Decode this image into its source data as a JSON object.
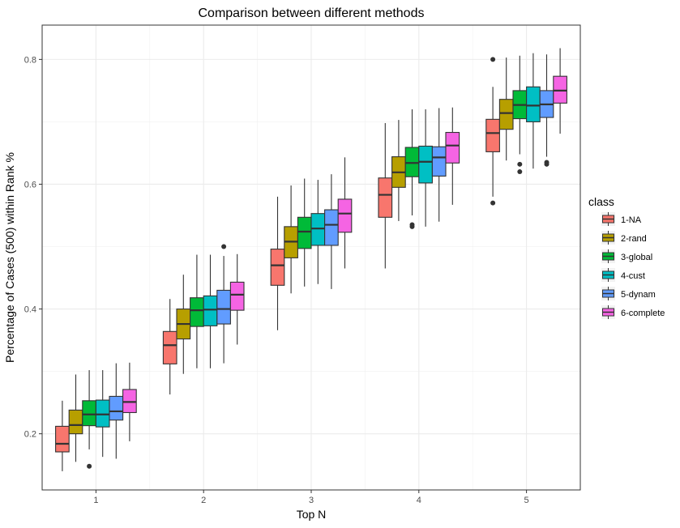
{
  "chart_data": {
    "type": "boxplot",
    "title": "Comparison between different methods",
    "xlabel": "Top N",
    "ylabel": "Percentage of Cases (500) within Rank %",
    "categories": [
      "1",
      "2",
      "3",
      "4",
      "5"
    ],
    "ylim": [
      0.11,
      0.855
    ],
    "y_ticks": [
      "0.2",
      "0.4",
      "0.6",
      "0.8"
    ],
    "grid": true,
    "legend": {
      "title": "class",
      "position": "right"
    },
    "series": [
      {
        "name": "1-NA",
        "color": "#F8766D",
        "boxes": [
          {
            "min": 0.14,
            "q1": 0.171,
            "median": 0.184,
            "q3": 0.212,
            "max": 0.253,
            "outliers": []
          },
          {
            "min": 0.263,
            "q1": 0.312,
            "median": 0.342,
            "q3": 0.364,
            "max": 0.416,
            "outliers": []
          },
          {
            "min": 0.366,
            "q1": 0.438,
            "median": 0.47,
            "q3": 0.496,
            "max": 0.58,
            "outliers": []
          },
          {
            "min": 0.465,
            "q1": 0.547,
            "median": 0.583,
            "q3": 0.61,
            "max": 0.698,
            "outliers": []
          },
          {
            "min": 0.58,
            "q1": 0.652,
            "median": 0.682,
            "q3": 0.704,
            "max": 0.756,
            "outliers": [
              0.57,
              0.8
            ]
          }
        ]
      },
      {
        "name": "2-rand",
        "color": "#B79F00",
        "boxes": [
          {
            "min": 0.155,
            "q1": 0.2,
            "median": 0.214,
            "q3": 0.238,
            "max": 0.295,
            "outliers": []
          },
          {
            "min": 0.296,
            "q1": 0.352,
            "median": 0.376,
            "q3": 0.4,
            "max": 0.455,
            "outliers": []
          },
          {
            "min": 0.425,
            "q1": 0.482,
            "median": 0.508,
            "q3": 0.532,
            "max": 0.598,
            "outliers": []
          },
          {
            "min": 0.541,
            "q1": 0.595,
            "median": 0.619,
            "q3": 0.644,
            "max": 0.703,
            "outliers": []
          },
          {
            "min": 0.638,
            "q1": 0.688,
            "median": 0.714,
            "q3": 0.736,
            "max": 0.803,
            "outliers": []
          }
        ]
      },
      {
        "name": "3-global",
        "color": "#00BA38",
        "boxes": [
          {
            "min": 0.175,
            "q1": 0.213,
            "median": 0.231,
            "q3": 0.253,
            "max": 0.302,
            "outliers": [
              0.148
            ]
          },
          {
            "min": 0.305,
            "q1": 0.372,
            "median": 0.398,
            "q3": 0.418,
            "max": 0.487,
            "outliers": []
          },
          {
            "min": 0.436,
            "q1": 0.497,
            "median": 0.524,
            "q3": 0.547,
            "max": 0.609,
            "outliers": []
          },
          {
            "min": 0.55,
            "q1": 0.612,
            "median": 0.634,
            "q3": 0.659,
            "max": 0.72,
            "outliers": [
              0.532,
              0.535
            ]
          },
          {
            "min": 0.648,
            "q1": 0.705,
            "median": 0.727,
            "q3": 0.75,
            "max": 0.806,
            "outliers": [
              0.62,
              0.632
            ]
          }
        ]
      },
      {
        "name": "4-cust",
        "color": "#00BFC4",
        "boxes": [
          {
            "min": 0.163,
            "q1": 0.211,
            "median": 0.231,
            "q3": 0.254,
            "max": 0.302,
            "outliers": []
          },
          {
            "min": 0.305,
            "q1": 0.373,
            "median": 0.399,
            "q3": 0.421,
            "max": 0.487,
            "outliers": []
          },
          {
            "min": 0.44,
            "q1": 0.502,
            "median": 0.529,
            "q3": 0.553,
            "max": 0.607,
            "outliers": []
          },
          {
            "min": 0.532,
            "q1": 0.602,
            "median": 0.636,
            "q3": 0.661,
            "max": 0.72,
            "outliers": []
          },
          {
            "min": 0.625,
            "q1": 0.7,
            "median": 0.726,
            "q3": 0.756,
            "max": 0.81,
            "outliers": []
          }
        ]
      },
      {
        "name": "5-dynam",
        "color": "#619CFF",
        "boxes": [
          {
            "min": 0.16,
            "q1": 0.222,
            "median": 0.236,
            "q3": 0.26,
            "max": 0.313,
            "outliers": []
          },
          {
            "min": 0.313,
            "q1": 0.376,
            "median": 0.4,
            "q3": 0.43,
            "max": 0.485,
            "outliers": [
              0.5
            ]
          },
          {
            "min": 0.432,
            "q1": 0.502,
            "median": 0.535,
            "q3": 0.559,
            "max": 0.616,
            "outliers": []
          },
          {
            "min": 0.54,
            "q1": 0.613,
            "median": 0.643,
            "q3": 0.66,
            "max": 0.722,
            "outliers": []
          },
          {
            "min": 0.644,
            "q1": 0.707,
            "median": 0.728,
            "q3": 0.75,
            "max": 0.808,
            "outliers": [
              0.632,
              0.635
            ]
          }
        ]
      },
      {
        "name": "6-complete",
        "color": "#F564E3",
        "boxes": [
          {
            "min": 0.188,
            "q1": 0.234,
            "median": 0.251,
            "q3": 0.271,
            "max": 0.314,
            "outliers": []
          },
          {
            "min": 0.343,
            "q1": 0.398,
            "median": 0.423,
            "q3": 0.443,
            "max": 0.488,
            "outliers": []
          },
          {
            "min": 0.465,
            "q1": 0.523,
            "median": 0.553,
            "q3": 0.576,
            "max": 0.643,
            "outliers": []
          },
          {
            "min": 0.567,
            "q1": 0.634,
            "median": 0.662,
            "q3": 0.683,
            "max": 0.723,
            "outliers": []
          },
          {
            "min": 0.681,
            "q1": 0.73,
            "median": 0.75,
            "q3": 0.773,
            "max": 0.818,
            "outliers": []
          }
        ]
      }
    ]
  }
}
